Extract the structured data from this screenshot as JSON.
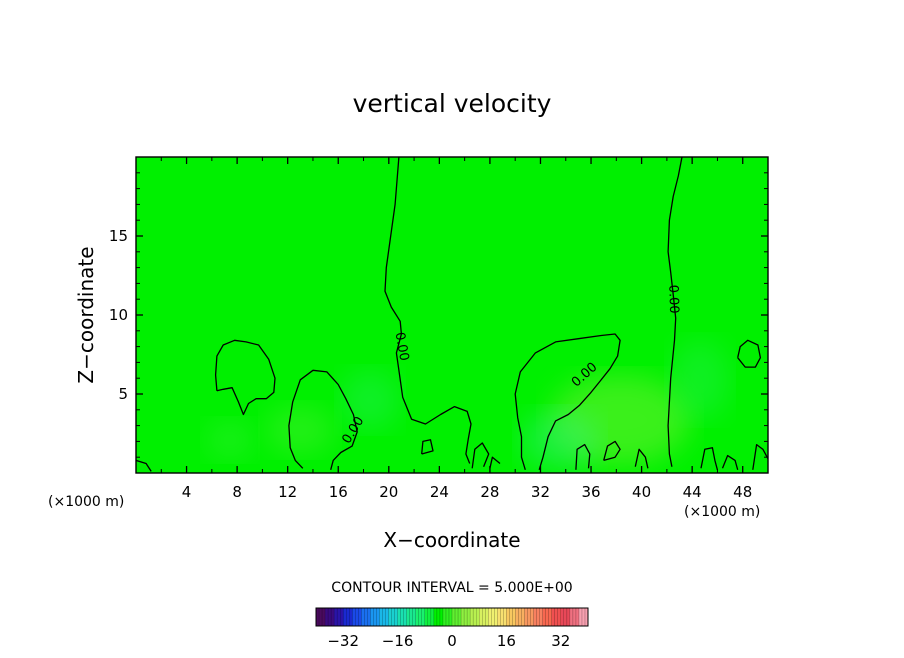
{
  "chart_data": {
    "type": "heatmap",
    "title": "vertical velocity",
    "xlabel": "X−coordinate",
    "ylabel": "Z−coordinate",
    "x_units_left": "(×1000 m)",
    "x_units_right": "(×1000 m)",
    "xlim": [
      0,
      50
    ],
    "ylim": [
      0,
      20
    ],
    "x_ticks": [
      4,
      8,
      12,
      16,
      20,
      24,
      28,
      32,
      36,
      40,
      44,
      48
    ],
    "y_ticks": [
      5,
      10,
      15
    ],
    "contour_interval_text": "CONTOUR INTERVAL = 5.000E+00",
    "contour_labels": [
      {
        "text": "0.00",
        "x": 21.0,
        "y": 8.0,
        "angle": 80
      },
      {
        "text": "0.00",
        "x": 17.2,
        "y": 2.7,
        "angle": -58
      },
      {
        "text": "0.00",
        "x": 35.5,
        "y": 6.2,
        "angle": -42
      },
      {
        "text": "0.00",
        "x": 42.5,
        "y": 11.0,
        "angle": 88
      }
    ],
    "contours": [
      [
        [
          20.8,
          20
        ],
        [
          20.5,
          17
        ],
        [
          19.8,
          13
        ],
        [
          19.7,
          11.5
        ],
        [
          20.2,
          10.5
        ],
        [
          20.9,
          9.6
        ],
        [
          21.0,
          8.8
        ],
        [
          20.6,
          7.6
        ],
        [
          20.8,
          6.5
        ],
        [
          21.1,
          4.8
        ],
        [
          21.8,
          3.4
        ],
        [
          22.9,
          3.1
        ],
        [
          24.1,
          3.7
        ],
        [
          25.2,
          4.2
        ],
        [
          26.2,
          3.9
        ],
        [
          26.5,
          3.1
        ],
        [
          26.3,
          2.2
        ],
        [
          26.1,
          1.2
        ],
        [
          26.4,
          0.6
        ]
      ],
      [
        [
          13.2,
          0.3
        ],
        [
          12.6,
          0.8
        ],
        [
          12.2,
          1.6
        ],
        [
          12.1,
          3.0
        ],
        [
          12.4,
          4.5
        ],
        [
          13.0,
          5.9
        ],
        [
          14.0,
          6.5
        ],
        [
          15.1,
          6.4
        ],
        [
          16.0,
          5.6
        ],
        [
          16.6,
          4.7
        ],
        [
          17.2,
          3.7
        ],
        [
          17.5,
          2.6
        ],
        [
          17.1,
          1.7
        ],
        [
          16.2,
          1.3
        ],
        [
          15.6,
          0.8
        ],
        [
          15.4,
          0.2
        ]
      ],
      [
        [
          30.8,
          0.2
        ],
        [
          30.5,
          1.0
        ],
        [
          30.5,
          2.3
        ],
        [
          30.2,
          3.5
        ],
        [
          30.0,
          5.0
        ],
        [
          30.4,
          6.4
        ],
        [
          31.6,
          7.6
        ],
        [
          33.2,
          8.3
        ],
        [
          35.0,
          8.5
        ],
        [
          36.8,
          8.7
        ],
        [
          37.9,
          8.8
        ],
        [
          38.3,
          8.4
        ],
        [
          38.1,
          7.4
        ],
        [
          37.5,
          6.6
        ],
        [
          36.7,
          5.8
        ],
        [
          36.0,
          5.1
        ],
        [
          35.1,
          4.3
        ],
        [
          34.2,
          3.7
        ],
        [
          33.2,
          3.3
        ],
        [
          32.6,
          2.3
        ],
        [
          32.2,
          1.0
        ],
        [
          31.9,
          0.2
        ]
      ],
      [
        [
          43.2,
          20
        ],
        [
          42.9,
          18.8
        ],
        [
          42.5,
          17.5
        ],
        [
          42.2,
          16.0
        ],
        [
          42.1,
          14.0
        ],
        [
          42.3,
          12.7
        ],
        [
          42.5,
          11.3
        ],
        [
          42.7,
          9.8
        ],
        [
          42.6,
          8.4
        ],
        [
          42.3,
          6.0
        ],
        [
          42.1,
          3.0
        ],
        [
          42.2,
          1.2
        ],
        [
          42.4,
          0.4
        ]
      ],
      [
        [
          6.4,
          5.2
        ],
        [
          6.3,
          6.2
        ],
        [
          6.4,
          7.4
        ],
        [
          6.9,
          8.1
        ],
        [
          7.8,
          8.4
        ],
        [
          8.7,
          8.3
        ],
        [
          9.7,
          8.1
        ],
        [
          10.5,
          7.2
        ],
        [
          11.0,
          6.0
        ],
        [
          10.9,
          5.1
        ],
        [
          10.3,
          4.7
        ],
        [
          9.5,
          4.7
        ],
        [
          8.9,
          4.4
        ],
        [
          8.5,
          3.7
        ],
        [
          8.1,
          4.5
        ],
        [
          7.6,
          5.4
        ],
        [
          6.9,
          5.3
        ],
        [
          6.4,
          5.2
        ]
      ],
      [
        [
          47.6,
          7.3
        ],
        [
          47.8,
          8.0
        ],
        [
          48.4,
          8.4
        ],
        [
          49.2,
          8.1
        ],
        [
          49.4,
          7.3
        ],
        [
          49.0,
          6.7
        ],
        [
          48.2,
          6.7
        ],
        [
          47.6,
          7.3
        ]
      ],
      [
        [
          34.8,
          0.2
        ],
        [
          34.9,
          1.5
        ],
        [
          35.5,
          1.8
        ],
        [
          35.9,
          1.2
        ],
        [
          35.8,
          0.3
        ]
      ],
      [
        [
          37.0,
          0.8
        ],
        [
          37.3,
          1.7
        ],
        [
          37.9,
          2.0
        ],
        [
          38.3,
          1.5
        ],
        [
          37.9,
          1.0
        ],
        [
          37.0,
          0.8
        ]
      ],
      [
        [
          22.6,
          1.2
        ],
        [
          22.7,
          2.0
        ],
        [
          23.3,
          2.1
        ],
        [
          23.5,
          1.4
        ],
        [
          22.6,
          1.2
        ]
      ],
      [
        [
          26.6,
          0.3
        ],
        [
          26.8,
          1.5
        ],
        [
          27.4,
          1.9
        ],
        [
          27.9,
          1.2
        ],
        [
          27.5,
          0.4
        ]
      ],
      [
        [
          28.0,
          0.3
        ],
        [
          28.2,
          1.0
        ],
        [
          28.8,
          0.6
        ]
      ],
      [
        [
          0,
          0.8
        ],
        [
          0.8,
          0.6
        ],
        [
          1.2,
          0.1
        ]
      ],
      [
        [
          44.7,
          0.3
        ],
        [
          45.0,
          1.5
        ],
        [
          45.6,
          1.6
        ],
        [
          45.8,
          0.8
        ],
        [
          46.0,
          0.2
        ]
      ],
      [
        [
          46.4,
          0.3
        ],
        [
          46.8,
          1.1
        ],
        [
          47.4,
          0.8
        ],
        [
          47.6,
          0.2
        ]
      ],
      [
        [
          48.8,
          0.2
        ],
        [
          49.1,
          1.8
        ],
        [
          49.6,
          1.5
        ],
        [
          50,
          0.9
        ]
      ],
      [
        [
          39.5,
          0.4
        ],
        [
          39.8,
          1.5
        ],
        [
          40.3,
          1.0
        ],
        [
          40.5,
          0.3
        ]
      ]
    ],
    "colorbar": {
      "min": -40,
      "max": 40,
      "tick_values": [
        -32,
        -16,
        0,
        16,
        32
      ],
      "tick_labels": [
        "−32",
        "−16",
        "0",
        "16",
        "32"
      ],
      "colors": [
        "#4a0a5e",
        "#3a0a80",
        "#2a14a8",
        "#1a2ad0",
        "#1a4ae8",
        "#1a70f0",
        "#1a96f0",
        "#1ab8e8",
        "#1ad0d0",
        "#1ae0b0",
        "#1ae890",
        "#1af070",
        "#10f040",
        "#00f000",
        "#30f020",
        "#60f030",
        "#90f040",
        "#b8f050",
        "#d8f060",
        "#f0f070",
        "#f8e070",
        "#f8c860",
        "#f8b060",
        "#f89860",
        "#f88060",
        "#f86850",
        "#f05050",
        "#e84858",
        "#f07080",
        "#f8a0b0"
      ]
    },
    "field_base_color": "#00f000",
    "contour_color": "#000000"
  }
}
